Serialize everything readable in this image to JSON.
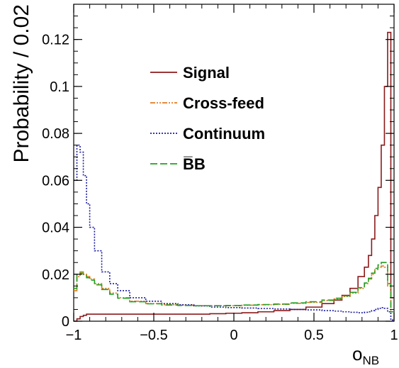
{
  "chart_data": {
    "type": "line",
    "title": "",
    "xlabel": "o",
    "xlabel_sub": "NB",
    "ylabel": "Probability / 0.02",
    "xlim": [
      -1,
      1
    ],
    "ylim": [
      0,
      0.135
    ],
    "x_ticks": [
      -1,
      -0.5,
      0,
      0.5,
      1
    ],
    "x_tick_labels": [
      "−1",
      "−0.5",
      "0",
      "0.5",
      "1"
    ],
    "y_ticks": [
      0,
      0.02,
      0.04,
      0.06,
      0.08,
      0.1,
      0.12
    ],
    "y_tick_labels": [
      "0",
      "0.02",
      "0.04",
      "0.06",
      "0.08",
      "0.1",
      "0.12"
    ],
    "grid": false,
    "legend_position": "upper-center",
    "x": [
      -0.99,
      -0.97,
      -0.95,
      -0.93,
      -0.91,
      -0.89,
      -0.85,
      -0.8,
      -0.75,
      -0.7,
      -0.6,
      -0.5,
      -0.4,
      -0.3,
      -0.2,
      -0.1,
      0.0,
      0.1,
      0.2,
      0.3,
      0.4,
      0.5,
      0.6,
      0.65,
      0.7,
      0.75,
      0.8,
      0.83,
      0.85,
      0.87,
      0.89,
      0.91,
      0.93,
      0.95,
      0.97,
      0.99
    ],
    "series": [
      {
        "name": "Signal",
        "color": "#8b1a1a",
        "style": "solid",
        "values": [
          0.0,
          0.001,
          0.002,
          0.0025,
          0.003,
          0.003,
          0.003,
          0.003,
          0.003,
          0.003,
          0.003,
          0.003,
          0.003,
          0.003,
          0.003,
          0.0032,
          0.0034,
          0.0036,
          0.004,
          0.0045,
          0.005,
          0.006,
          0.0075,
          0.009,
          0.011,
          0.014,
          0.019,
          0.023,
          0.028,
          0.035,
          0.045,
          0.057,
          0.075,
          0.1,
          0.123,
          0.01
        ]
      },
      {
        "name": "Cross-feed",
        "color": "#e07b20",
        "style": "dashdot",
        "values": [
          0.013,
          0.019,
          0.021,
          0.02,
          0.019,
          0.018,
          0.016,
          0.014,
          0.012,
          0.01,
          0.0085,
          0.0075,
          0.007,
          0.0068,
          0.0066,
          0.0066,
          0.0066,
          0.0068,
          0.007,
          0.0072,
          0.0076,
          0.008,
          0.0088,
          0.0095,
          0.0105,
          0.012,
          0.014,
          0.016,
          0.018,
          0.02,
          0.022,
          0.023,
          0.0235,
          0.023,
          0.015,
          0.004
        ]
      },
      {
        "name": "Continuum",
        "color": "#1a1aa0",
        "style": "dotted",
        "values": [
          0.06,
          0.075,
          0.072,
          0.062,
          0.05,
          0.04,
          0.03,
          0.021,
          0.016,
          0.013,
          0.01,
          0.0085,
          0.0075,
          0.007,
          0.0065,
          0.006,
          0.0058,
          0.0056,
          0.0054,
          0.0052,
          0.005,
          0.0048,
          0.0045,
          0.0043,
          0.004,
          0.0038,
          0.0036,
          0.0038,
          0.004,
          0.0045,
          0.005,
          0.0055,
          0.0058,
          0.0055,
          0.004,
          0.0005
        ]
      },
      {
        "name": "B̅B",
        "color": "#22a022",
        "style": "dashed",
        "values": [
          0.014,
          0.02,
          0.0205,
          0.0195,
          0.0185,
          0.0175,
          0.0155,
          0.0135,
          0.0115,
          0.0098,
          0.0083,
          0.0074,
          0.0069,
          0.0067,
          0.0066,
          0.0066,
          0.0067,
          0.0069,
          0.0071,
          0.0073,
          0.0078,
          0.0083,
          0.009,
          0.0098,
          0.0108,
          0.0123,
          0.0143,
          0.0163,
          0.0183,
          0.0205,
          0.0225,
          0.024,
          0.025,
          0.025,
          0.016,
          0.004
        ]
      }
    ]
  }
}
